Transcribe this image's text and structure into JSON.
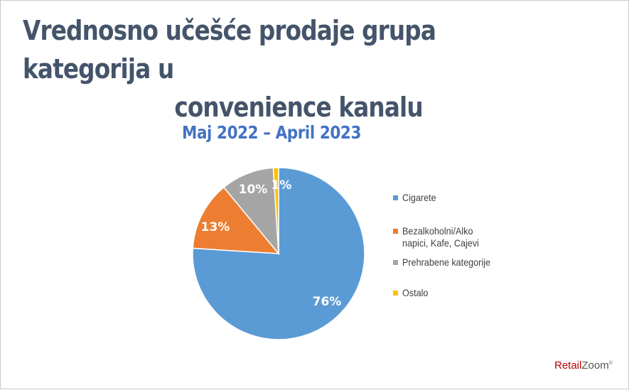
{
  "slide": {
    "title_line1": "Vrednosno učešće prodaje grupa kategorija u",
    "title_line2": "convenience kanalu",
    "subtitle": "Maj 2022 – April 2023",
    "brand_retail": "Retail",
    "brand_zoom": "Zoom",
    "brand_mark": "©"
  },
  "chart_data": {
    "type": "pie",
    "title": "Maj 2022 – April 2023",
    "legend_position": "right",
    "slices": [
      {
        "name": "Cigarete",
        "value": 76,
        "label": "76%",
        "color": "#5b9bd5"
      },
      {
        "name": "Bezalkoholni/Alko napici, Kafe, Cajevi",
        "value": 13,
        "label": "13%",
        "color": "#ed7d31"
      },
      {
        "name": "Prehrabene kategorije",
        "value": 10,
        "label": "10%",
        "color": "#a5a5a5"
      },
      {
        "name": "Ostalo",
        "value": 1,
        "label": "1%",
        "color": "#ffc000"
      }
    ]
  }
}
